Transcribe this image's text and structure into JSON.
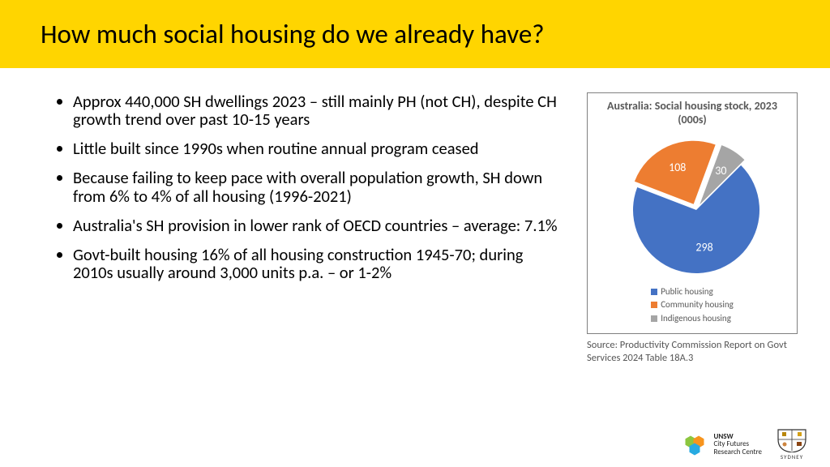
{
  "title": "How much social housing do we already have?",
  "title_bar_bg": "#ffd500",
  "bullets": [
    "Approx 440,000 SH dwellings 2023 – still mainly PH (not CH), despite CH growth trend over past 10-15 years",
    "Little built since 1990s when routine annual program ceased",
    "Because failing to keep pace with overall population growth, SH down from 6% to 4% of all housing (1996-2021)",
    "Australia's SH provision in lower rank of OECD countries – average: 7.1%",
    "Govt-built housing 16% of all housing construction 1945-70; during 2010s usually around 3,000 units p.a. – or 1-2%"
  ],
  "chart": {
    "type": "pie",
    "title": "Australia: Social housing stock, 2023 (000s)",
    "background": "#ffffff",
    "border_color": "#808080",
    "slices": [
      {
        "label": "Public housing",
        "value": 298,
        "color": "#4472c4",
        "exploded": false
      },
      {
        "label": "Community housing",
        "value": 108,
        "color": "#ed7d31",
        "exploded": true
      },
      {
        "label": "Indigenous housing",
        "value": 30,
        "color": "#a5a5a5",
        "exploded": true
      }
    ],
    "label_color": "#ffffff",
    "label_fontsize": 14,
    "legend_fontsize": 11,
    "legend_color": "#595959",
    "start_angle_deg": 45
  },
  "source_text": "Source: Productivity Commission Report on Govt Services 2024 Table 18A.3",
  "logos": {
    "cf": {
      "line1": "UNSW",
      "line2": "City Futures",
      "line3": "Research Centre"
    },
    "unsw": {
      "sub": "SYDNEY"
    }
  }
}
